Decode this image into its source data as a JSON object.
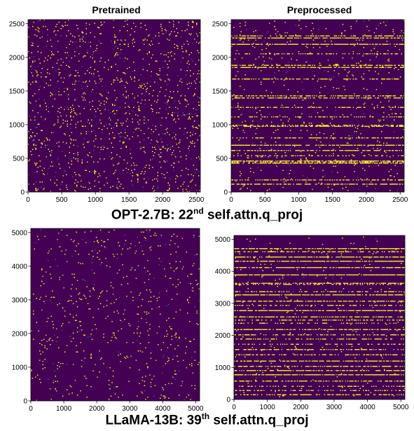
{
  "figure": {
    "row1_caption": {
      "prefix": "OPT-2.7B: 22",
      "superscript": "nd",
      "suffix": " self.attn.q_proj"
    },
    "row2_caption": {
      "prefix": "LLaMA-13B: 39",
      "superscript": "th",
      "suffix": " self.attn.q_proj"
    }
  },
  "colors": {
    "background": "#440154",
    "dot": "#fde725",
    "dot_mid": "#c8d43a",
    "dot_low": "#3b528b"
  },
  "chart_data": [
    {
      "type": "heatmap",
      "title": "Pretrained",
      "model": "OPT-2.7B",
      "xlim": [
        0,
        2560
      ],
      "ylim": [
        0,
        2560
      ],
      "xticks": [
        0,
        500,
        1000,
        1500,
        2000,
        2500
      ],
      "yticks": [
        0,
        500,
        1000,
        1500,
        2000,
        2500
      ],
      "pattern": "uniform-sparse",
      "density": 0.05,
      "seed": 11,
      "band_rows": []
    },
    {
      "type": "heatmap",
      "title": "Preprocessed",
      "model": "OPT-2.7B",
      "xlim": [
        0,
        2560
      ],
      "ylim": [
        0,
        2560
      ],
      "xticks": [
        0,
        500,
        1000,
        1500,
        2000,
        2500
      ],
      "yticks": [
        0,
        500,
        1000,
        1500,
        2000,
        2500
      ],
      "pattern": "row-concentrated",
      "density": 0.02,
      "seed": 23,
      "band_rows": [
        2330,
        2290,
        2200,
        2060,
        1890,
        1860,
        1690,
        1430,
        1400,
        1260,
        1130,
        1000,
        980,
        810,
        700,
        620,
        540,
        470,
        450,
        430,
        180,
        120
      ]
    },
    {
      "type": "heatmap",
      "title": "",
      "model": "LLaMA-13B",
      "xlim": [
        0,
        5120
      ],
      "ylim": [
        0,
        5120
      ],
      "xticks": [
        0,
        1000,
        2000,
        3000,
        4000,
        5000
      ],
      "yticks": [
        0,
        1000,
        2000,
        3000,
        4000,
        5000
      ],
      "pattern": "uniform-sparse",
      "density": 0.025,
      "seed": 37,
      "band_rows": []
    },
    {
      "type": "heatmap",
      "title": "",
      "model": "LLaMA-13B",
      "xlim": [
        0,
        5120
      ],
      "ylim": [
        0,
        5120
      ],
      "xticks": [
        0,
        1000,
        2000,
        3000,
        4000,
        5000
      ],
      "yticks": [
        0,
        1000,
        2000,
        3000,
        4000,
        5000
      ],
      "pattern": "row-concentrated",
      "density": 0.01,
      "seed": 53,
      "band_rows": [
        4720,
        4620,
        4480,
        4330,
        4120,
        3900,
        3640,
        3600,
        3380,
        3280,
        3100,
        2950,
        2780,
        2600,
        2500,
        2380,
        2200,
        2050,
        1900,
        1750,
        1580,
        1420,
        1200,
        1060,
        920,
        800,
        600,
        430,
        280,
        150
      ]
    }
  ]
}
